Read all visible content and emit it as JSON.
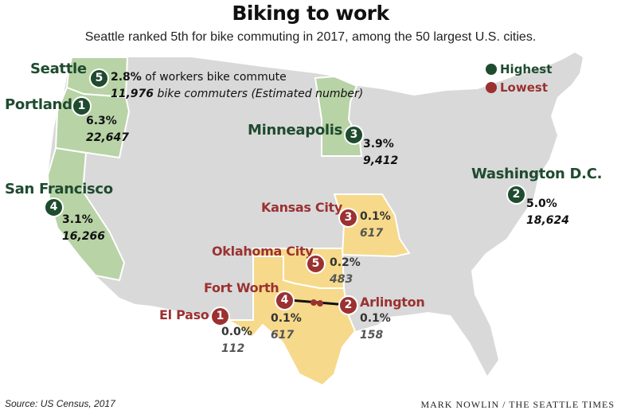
{
  "title": "Biking to work",
  "subtitle": "Seattle ranked 5th for bike commuting in 2017, among the 50 largest U.S. cities.",
  "legend": {
    "highest": "Highest",
    "lowest": "Lowest"
  },
  "colors": {
    "highest": "#1f4b2f",
    "lowest": "#9b3131",
    "highest_states": "#b8d3a6",
    "lowest_states": "#f6d98a",
    "land": "#d9d9d9"
  },
  "seattle_note": {
    "pct_suffix": " of workers bike commute",
    "num_suffix": " bike commuters (Estimated number)"
  },
  "highest": [
    {
      "city": "Seattle",
      "rank": "5",
      "pct": "2.8%",
      "count": "11,976"
    },
    {
      "city": "Portland",
      "rank": "1",
      "pct": "6.3%",
      "count": "22,647"
    },
    {
      "city": "Minneapolis",
      "rank": "3",
      "pct": "3.9%",
      "count": "9,412"
    },
    {
      "city": "Washington D.C.",
      "rank": "2",
      "pct": "5.0%",
      "count": "18,624"
    },
    {
      "city": "San Francisco",
      "rank": "4",
      "pct": "3.1%",
      "count": "16,266"
    }
  ],
  "lowest": [
    {
      "city": "Kansas City",
      "rank": "3",
      "pct": "0.1%",
      "count": "617"
    },
    {
      "city": "Oklahoma City",
      "rank": "5",
      "pct": "0.2%",
      "count": "483"
    },
    {
      "city": "Fort Worth",
      "rank": "4",
      "pct": "0.1%",
      "count": "617"
    },
    {
      "city": "Arlington",
      "rank": "2",
      "pct": "0.1%",
      "count": "158"
    },
    {
      "city": "El Paso",
      "rank": "1",
      "pct": "0.0%",
      "count": "112"
    }
  ],
  "source": "Source: US Census, 2017",
  "credit": "MARK NOWLIN / THE SEATTLE TIMES"
}
